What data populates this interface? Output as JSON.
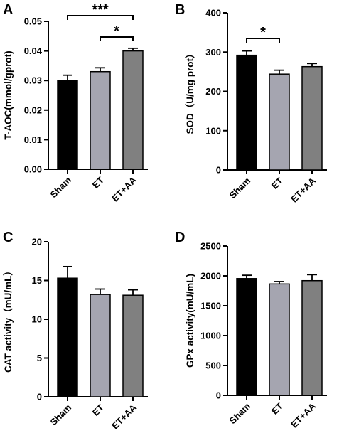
{
  "figure": {
    "colors": {
      "Sham": "#000000",
      "ET": "#a5a5b0",
      "ET+AA": "#808080",
      "axis": "#000000"
    }
  },
  "chart_data": [
    {
      "panel": "A",
      "type": "bar",
      "categories": [
        "Sham",
        "ET",
        "ET+AA"
      ],
      "values": [
        0.03,
        0.033,
        0.04
      ],
      "errors": [
        0.0018,
        0.0013,
        0.0009
      ],
      "ylabel": "T-AOC(mmol/gprot)",
      "ylim": [
        0,
        0.05
      ],
      "yticks": [
        "0.00",
        "0.01",
        "0.02",
        "0.03",
        "0.04",
        "0.05"
      ],
      "significance": [
        {
          "from": "Sham",
          "to": "ET+AA",
          "label": "***"
        },
        {
          "from": "ET",
          "to": "ET+AA",
          "label": "*"
        }
      ]
    },
    {
      "panel": "B",
      "type": "bar",
      "categories": [
        "Sham",
        "ET",
        "ET+AA"
      ],
      "values": [
        292,
        244,
        263
      ],
      "errors": [
        11,
        10,
        8
      ],
      "ylabel": "SOD（U/mg prot）",
      "ylim": [
        0,
        400
      ],
      "yticks": [
        "0",
        "100",
        "200",
        "300",
        "400"
      ],
      "significance": [
        {
          "from": "Sham",
          "to": "ET",
          "label": "*"
        }
      ]
    },
    {
      "panel": "C",
      "type": "bar",
      "categories": [
        "Sham",
        "ET",
        "ET+AA"
      ],
      "values": [
        15.3,
        13.2,
        13.1
      ],
      "errors": [
        1.5,
        0.7,
        0.7
      ],
      "ylabel": "CAT activity（mU/mL）",
      "ylim": [
        0,
        20
      ],
      "yticks": [
        "0",
        "5",
        "10",
        "15",
        "20"
      ],
      "significance": []
    },
    {
      "panel": "D",
      "type": "bar",
      "categories": [
        "Sham",
        "ET",
        "ET+AA"
      ],
      "values": [
        1955,
        1865,
        1920
      ],
      "errors": [
        55,
        40,
        100
      ],
      "ylabel": "GPx activity(mU/mL)",
      "ylim": [
        0,
        2500
      ],
      "yticks": [
        "0",
        "500",
        "1000",
        "1500",
        "2000",
        "2500"
      ],
      "significance": []
    }
  ]
}
